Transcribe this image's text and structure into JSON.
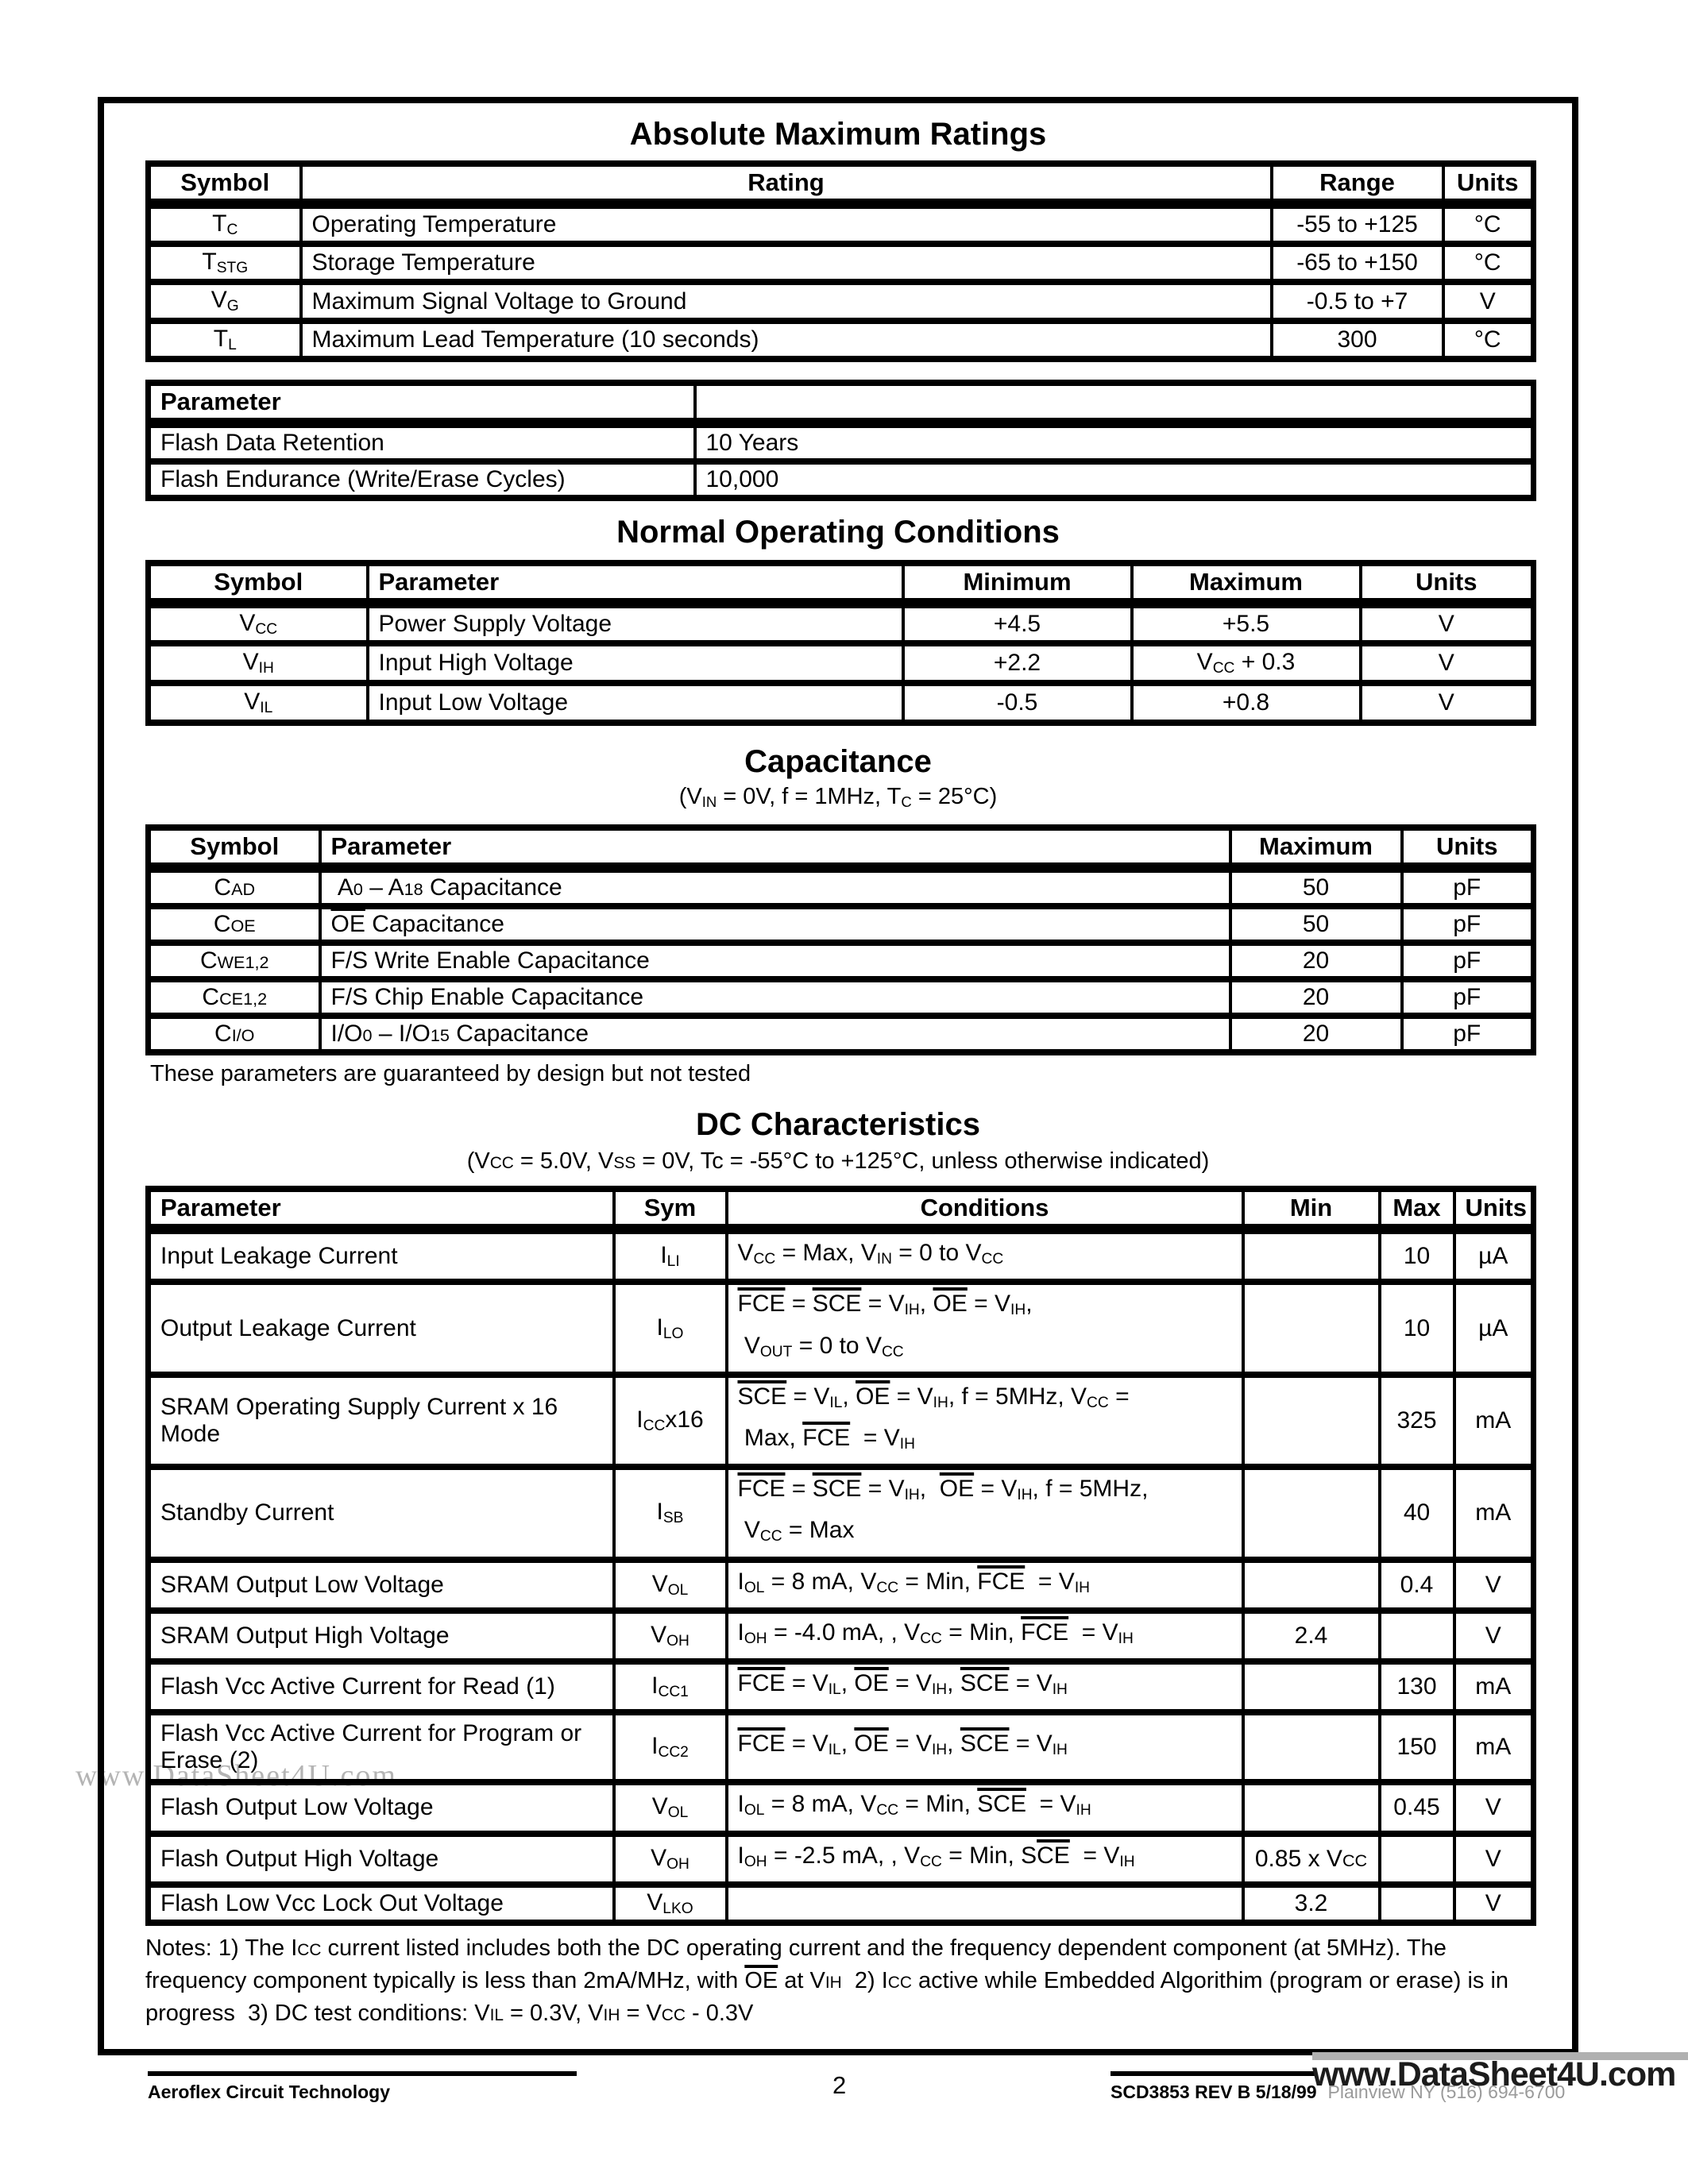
{
  "colors": {
    "ink": "#000000",
    "watermark_gray": "#b4b4b4",
    "footer_address_gray": "#9a9a9a"
  },
  "titles": {
    "abs_max": "Absolute Maximum Ratings",
    "normal_op": "Normal Operating Conditions",
    "capacitance": "Capacitance",
    "dc": "DC Characteristics"
  },
  "abs_max": {
    "headers": [
      "Symbol",
      "Rating",
      "Range",
      "Units"
    ],
    "rows": [
      {
        "sym": [
          {
            "s": "T"
          },
          {
            "s": "C",
            "f": "sub"
          }
        ],
        "rating": "Operating Temperature",
        "range": "-55 to +125",
        "units": "°C"
      },
      {
        "sym": [
          {
            "s": "T"
          },
          {
            "s": "STG",
            "f": "sub"
          }
        ],
        "rating": "Storage Temperature",
        "range": "-65 to +150",
        "units": "°C"
      },
      {
        "sym": [
          {
            "s": "V"
          },
          {
            "s": "G",
            "f": "sub"
          }
        ],
        "rating": "Maximum Signal Voltage to Ground",
        "range": "-0.5 to +7",
        "units": "V"
      },
      {
        "sym": [
          {
            "s": "T"
          },
          {
            "s": "L",
            "f": "sub"
          }
        ],
        "rating": "Maximum Lead Temperature (10 seconds)",
        "range": "300",
        "units": "°C"
      }
    ]
  },
  "param_table": {
    "header": "Parameter",
    "rows": [
      {
        "param": "Flash Data Retention",
        "value": "10 Years"
      },
      {
        "param": "Flash Endurance (Write/Erase Cycles)",
        "value": "10,000"
      }
    ]
  },
  "normal_op": {
    "headers": [
      "Symbol",
      "Parameter",
      "Minimum",
      "Maximum",
      "Units"
    ],
    "rows": [
      {
        "sym": [
          {
            "s": "V"
          },
          {
            "s": "CC",
            "f": "sub"
          }
        ],
        "param": "Power Supply Voltage",
        "min": "+4.5",
        "max": [
          {
            "s": "+5.5"
          }
        ],
        "units": "V"
      },
      {
        "sym": [
          {
            "s": "V"
          },
          {
            "s": "IH",
            "f": "sub"
          }
        ],
        "param": "Input High Voltage",
        "min": "+2.2",
        "max": [
          {
            "s": "V"
          },
          {
            "s": "CC",
            "f": "sub"
          },
          {
            "s": " + 0.3"
          }
        ],
        "units": "V"
      },
      {
        "sym": [
          {
            "s": "V"
          },
          {
            "s": "IL",
            "f": "sub"
          }
        ],
        "param": "Input Low Voltage",
        "min": "-0.5",
        "max": [
          {
            "s": "+0.8"
          }
        ],
        "units": "V"
      }
    ]
  },
  "capacitance": {
    "subtitle": [
      {
        "s": "(V"
      },
      {
        "s": "IN",
        "f": "sub"
      },
      {
        "s": " = 0V, f = 1MHz, T"
      },
      {
        "s": "C",
        "f": "sub"
      },
      {
        "s": " = 25°C)"
      }
    ],
    "headers": [
      "Symbol",
      "Parameter",
      "Maximum",
      "Units"
    ],
    "rows": [
      {
        "sym": [
          {
            "s": "C"
          },
          {
            "s": "AD",
            "f": "sc"
          }
        ],
        "param": [
          {
            "s": " A"
          },
          {
            "s": "0",
            "f": "sc"
          },
          {
            "s": " – A"
          },
          {
            "s": "18",
            "f": "sc"
          },
          {
            "s": " Capacitance"
          }
        ],
        "max": "50",
        "units": "pF"
      },
      {
        "sym": [
          {
            "s": "C"
          },
          {
            "s": "OE",
            "f": "sc"
          }
        ],
        "param": [
          {
            "s": "OE",
            "f": "ov"
          },
          {
            "s": " Capacitance"
          }
        ],
        "max": "50",
        "units": "pF"
      },
      {
        "sym": [
          {
            "s": "C"
          },
          {
            "s": "WE1,2",
            "f": "sc"
          }
        ],
        "param": [
          {
            "s": "F/S Write Enable Capacitance"
          }
        ],
        "max": "20",
        "units": "pF"
      },
      {
        "sym": [
          {
            "s": "C"
          },
          {
            "s": "CE1,2",
            "f": "sc"
          }
        ],
        "param": [
          {
            "s": "F/S Chip Enable Capacitance"
          }
        ],
        "max": "20",
        "units": "pF"
      },
      {
        "sym": [
          {
            "s": "C"
          },
          {
            "s": "I/O",
            "f": "sc"
          }
        ],
        "param": [
          {
            "s": "I/O"
          },
          {
            "s": "0",
            "f": "sc"
          },
          {
            "s": " – I/O"
          },
          {
            "s": "15",
            "f": "sc"
          },
          {
            "s": " Capacitance"
          }
        ],
        "max": "20",
        "units": "pF"
      }
    ],
    "footnote": "These parameters are guaranteed by design but not tested"
  },
  "dc": {
    "subtitle": [
      {
        "s": "(V"
      },
      {
        "s": "CC",
        "f": "sc"
      },
      {
        "s": " = 5.0V, V"
      },
      {
        "s": "SS",
        "f": "sc"
      },
      {
        "s": " = 0V, Tc = -55°C to +125°C, unless otherwise indicated)"
      }
    ],
    "headers": [
      "Parameter",
      "Sym",
      "Conditions",
      "Min",
      "Max",
      "Units"
    ],
    "rows": [
      {
        "param": "Input Leakage Current",
        "sym": [
          {
            "s": "I"
          },
          {
            "s": "LI",
            "f": "sub"
          }
        ],
        "cond": [
          {
            "s": "V"
          },
          {
            "s": "CC",
            "f": "sub"
          },
          {
            "s": " = Max, V"
          },
          {
            "s": "IN",
            "f": "sub"
          },
          {
            "s": " = 0 to V"
          },
          {
            "s": "CC",
            "f": "sub"
          }
        ],
        "min": "",
        "max": "10",
        "units": "µA"
      },
      {
        "param": "Output Leakage Current",
        "sym": [
          {
            "s": "I"
          },
          {
            "s": "LO",
            "f": "sub"
          }
        ],
        "cond": [
          {
            "s": "FCE",
            "f": "ov"
          },
          {
            "s": " = "
          },
          {
            "s": "SCE",
            "f": "ov"
          },
          {
            "s": " = V"
          },
          {
            "s": "IH",
            "f": "sub"
          },
          {
            "s": ", "
          },
          {
            "s": "OE",
            "f": "ov"
          },
          {
            "s": " = V"
          },
          {
            "s": "IH",
            "f": "sub"
          },
          {
            "s": ","
          },
          {
            "f": "br"
          },
          {
            "s": " V"
          },
          {
            "s": "OUT",
            "f": "sub"
          },
          {
            "s": " = 0 to V"
          },
          {
            "s": "CC",
            "f": "sub"
          }
        ],
        "min": "",
        "max": "10",
        "units": "µA"
      },
      {
        "param": "SRAM Operating Supply Current x 16 Mode",
        "sym": [
          {
            "s": "I"
          },
          {
            "s": "CC",
            "f": "sub"
          },
          {
            "s": "x16"
          }
        ],
        "cond": [
          {
            "s": "SCE",
            "f": "ov"
          },
          {
            "s": " = V"
          },
          {
            "s": "IL",
            "f": "sub"
          },
          {
            "s": ", "
          },
          {
            "s": "OE",
            "f": "ov"
          },
          {
            "s": " = V"
          },
          {
            "s": "IH",
            "f": "sub"
          },
          {
            "s": ", f = 5MHz, V"
          },
          {
            "s": "CC",
            "f": "sub"
          },
          {
            "s": " ="
          },
          {
            "f": "br"
          },
          {
            "s": " Max, "
          },
          {
            "s": "FCE",
            "f": "ov"
          },
          {
            "s": "  = V"
          },
          {
            "s": "IH",
            "f": "sub"
          }
        ],
        "min": "",
        "max": "325",
        "units": "mA"
      },
      {
        "param": "Standby Current",
        "sym": [
          {
            "s": "I"
          },
          {
            "s": "SB",
            "f": "sub"
          }
        ],
        "cond": [
          {
            "s": "FCE",
            "f": "ov"
          },
          {
            "s": " = "
          },
          {
            "s": "SCE",
            "f": "ov"
          },
          {
            "s": " = V"
          },
          {
            "s": "IH",
            "f": "sub"
          },
          {
            "s": ",  "
          },
          {
            "s": "OE",
            "f": "ov"
          },
          {
            "s": " = V"
          },
          {
            "s": "IH",
            "f": "sub"
          },
          {
            "s": ", f = 5MHz,"
          },
          {
            "f": "br"
          },
          {
            "s": " V"
          },
          {
            "s": "CC",
            "f": "sub"
          },
          {
            "s": " = Max"
          }
        ],
        "min": "",
        "max": "40",
        "units": "mA"
      },
      {
        "param": "SRAM Output Low Voltage",
        "sym": [
          {
            "s": "V"
          },
          {
            "s": "OL",
            "f": "sub"
          }
        ],
        "cond": [
          {
            "s": "I"
          },
          {
            "s": "OL",
            "f": "sub"
          },
          {
            "s": " = 8 mA, V"
          },
          {
            "s": "CC",
            "f": "sub"
          },
          {
            "s": " = Min, "
          },
          {
            "s": "FCE",
            "f": "ov"
          },
          {
            "s": "  = V"
          },
          {
            "s": "IH",
            "f": "sub"
          }
        ],
        "min": "",
        "max": "0.4",
        "units": "V"
      },
      {
        "param": "SRAM Output High Voltage",
        "sym": [
          {
            "s": "V"
          },
          {
            "s": "OH",
            "f": "sub"
          }
        ],
        "cond": [
          {
            "s": "I"
          },
          {
            "s": "OH",
            "f": "sub"
          },
          {
            "s": " = -4.0 mA, , V"
          },
          {
            "s": "CC",
            "f": "sub"
          },
          {
            "s": " = Min, "
          },
          {
            "s": "FCE",
            "f": "ov"
          },
          {
            "s": "  = V"
          },
          {
            "s": "IH",
            "f": "sub"
          }
        ],
        "min": "2.4",
        "max": "",
        "units": "V"
      },
      {
        "param": "Flash Vcc Active Current for Read (1)",
        "sym": [
          {
            "s": "I"
          },
          {
            "s": "CC1",
            "f": "sub"
          }
        ],
        "cond": [
          {
            "s": "FCE",
            "f": "ov"
          },
          {
            "s": " = V"
          },
          {
            "s": "IL",
            "f": "sub"
          },
          {
            "s": ", "
          },
          {
            "s": "OE",
            "f": "ov"
          },
          {
            "s": " = V"
          },
          {
            "s": "IH",
            "f": "sub"
          },
          {
            "s": ", "
          },
          {
            "s": "SCE",
            "f": "ov"
          },
          {
            "s": " = V"
          },
          {
            "s": "IH",
            "f": "sub"
          }
        ],
        "min": "",
        "max": "130",
        "units": "mA"
      },
      {
        "param": "Flash Vcc Active Current for Program or Erase (2)",
        "sym": [
          {
            "s": "I"
          },
          {
            "s": "CC2",
            "f": "sub"
          }
        ],
        "cond": [
          {
            "s": "FCE",
            "f": "ov"
          },
          {
            "s": " = V"
          },
          {
            "s": "IL",
            "f": "sub"
          },
          {
            "s": ", "
          },
          {
            "s": "OE",
            "f": "ov"
          },
          {
            "s": " = V"
          },
          {
            "s": "IH",
            "f": "sub"
          },
          {
            "s": ", "
          },
          {
            "s": "SCE",
            "f": "ov"
          },
          {
            "s": " = V"
          },
          {
            "s": "IH",
            "f": "sub"
          }
        ],
        "min": "",
        "max": "150",
        "units": "mA"
      },
      {
        "param": "Flash Output Low Voltage",
        "sym": [
          {
            "s": "V"
          },
          {
            "s": "OL",
            "f": "sub"
          }
        ],
        "cond": [
          {
            "s": "I"
          },
          {
            "s": "OL",
            "f": "sub"
          },
          {
            "s": " = 8 mA, V"
          },
          {
            "s": "CC",
            "f": "sub"
          },
          {
            "s": " = Min, "
          },
          {
            "s": "SCE",
            "f": "ov"
          },
          {
            "s": "  = V"
          },
          {
            "s": "IH",
            "f": "sub"
          }
        ],
        "min": "",
        "max": "0.45",
        "units": "V"
      },
      {
        "param": "Flash Output High Voltage",
        "sym": [
          {
            "s": "V"
          },
          {
            "s": "OH",
            "f": "sub"
          }
        ],
        "cond": [
          {
            "s": "I"
          },
          {
            "s": "OH",
            "f": "sub"
          },
          {
            "s": " = -2.5 mA, , V"
          },
          {
            "s": "CC",
            "f": "sub"
          },
          {
            "s": " = Min, S"
          },
          {
            "s": "CE",
            "f": "ov"
          },
          {
            "s": "  = V"
          },
          {
            "s": "IH",
            "f": "sub"
          }
        ],
        "min": [
          {
            "s": "0.85 x V"
          },
          {
            "s": "CC",
            "f": "sc"
          }
        ],
        "max": "",
        "units": "V"
      },
      {
        "param": "Flash Low Vcc Lock Out Voltage",
        "sym": [
          {
            "s": "V"
          },
          {
            "s": "LKO",
            "f": "sub"
          }
        ],
        "cond": [],
        "min": "3.2",
        "max": "",
        "units": "V"
      }
    ]
  },
  "notes": [
    {
      "s": "Notes:  1) The I"
    },
    {
      "s": "CC",
      "f": "sc"
    },
    {
      "s": " current listed includes both the DC operating current and the frequency dependent component (at 5MHz). The frequency component typically is less than 2mA/MHz, with "
    },
    {
      "s": "OE",
      "f": "ov"
    },
    {
      "s": " at V"
    },
    {
      "s": "IH",
      "f": "sc"
    },
    {
      "s": "  2) I"
    },
    {
      "s": "CC",
      "f": "sc"
    },
    {
      "s": " active while Embedded Algorithim (program or erase) is in progress  3) DC test conditions: V"
    },
    {
      "s": "IL",
      "f": "sc"
    },
    {
      "s": " = 0.3V, V"
    },
    {
      "s": "IH",
      "f": "sc"
    },
    {
      "s": " = V"
    },
    {
      "s": "CC",
      "f": "sc"
    },
    {
      "s": " - 0.3V"
    }
  ],
  "footer": {
    "company": "Aeroflex Circuit Technology",
    "page_number": "2",
    "doc_code": "SCD3853 REV B  5/18/99",
    "address": "Plainview NY (516) 694-6700"
  },
  "watermarks": {
    "side": "www.DataSheet4U.com",
    "bottom": "www.DataSheet4U.com"
  }
}
